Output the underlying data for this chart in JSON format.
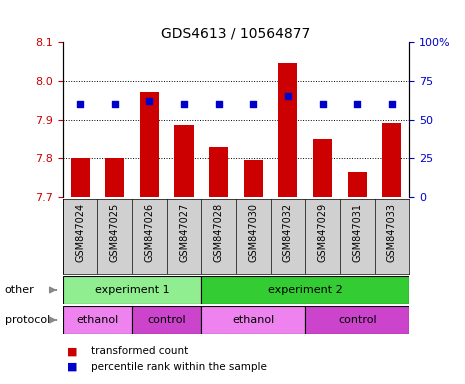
{
  "title": "GDS4613 / 10564877",
  "samples": [
    "GSM847024",
    "GSM847025",
    "GSM847026",
    "GSM847027",
    "GSM847028",
    "GSM847030",
    "GSM847032",
    "GSM847029",
    "GSM847031",
    "GSM847033"
  ],
  "bar_values": [
    7.8,
    7.8,
    7.97,
    7.885,
    7.83,
    7.795,
    8.045,
    7.85,
    7.765,
    7.89
  ],
  "dot_values": [
    60,
    60,
    62,
    60,
    60,
    60,
    65,
    60,
    60,
    60
  ],
  "ylim_left": [
    7.7,
    8.1
  ],
  "ylim_right": [
    0,
    100
  ],
  "yticks_left": [
    7.7,
    7.8,
    7.9,
    8.0,
    8.1
  ],
  "yticks_right": [
    0,
    25,
    50,
    75,
    100
  ],
  "bar_color": "#cc0000",
  "dot_color": "#0000cc",
  "bar_bottom": 7.7,
  "experiment_groups": [
    {
      "label": "experiment 1",
      "start": 0,
      "end": 4,
      "color": "#90ee90"
    },
    {
      "label": "experiment 2",
      "start": 4,
      "end": 10,
      "color": "#33cc33"
    }
  ],
  "protocol_groups": [
    {
      "label": "ethanol",
      "start": 0,
      "end": 2,
      "color": "#ee82ee"
    },
    {
      "label": "control",
      "start": 2,
      "end": 4,
      "color": "#cc44cc"
    },
    {
      "label": "ethanol",
      "start": 4,
      "end": 7,
      "color": "#ee82ee"
    },
    {
      "label": "control",
      "start": 7,
      "end": 10,
      "color": "#cc44cc"
    }
  ],
  "legend_items": [
    {
      "label": "transformed count",
      "color": "#cc0000"
    },
    {
      "label": "percentile rank within the sample",
      "color": "#0000cc"
    }
  ],
  "left_tick_color": "#cc0000",
  "right_tick_color": "#0000cc",
  "other_label": "other",
  "protocol_label": "protocol",
  "right_tick_labels": [
    "0",
    "25",
    "50",
    "75",
    "100%"
  ]
}
